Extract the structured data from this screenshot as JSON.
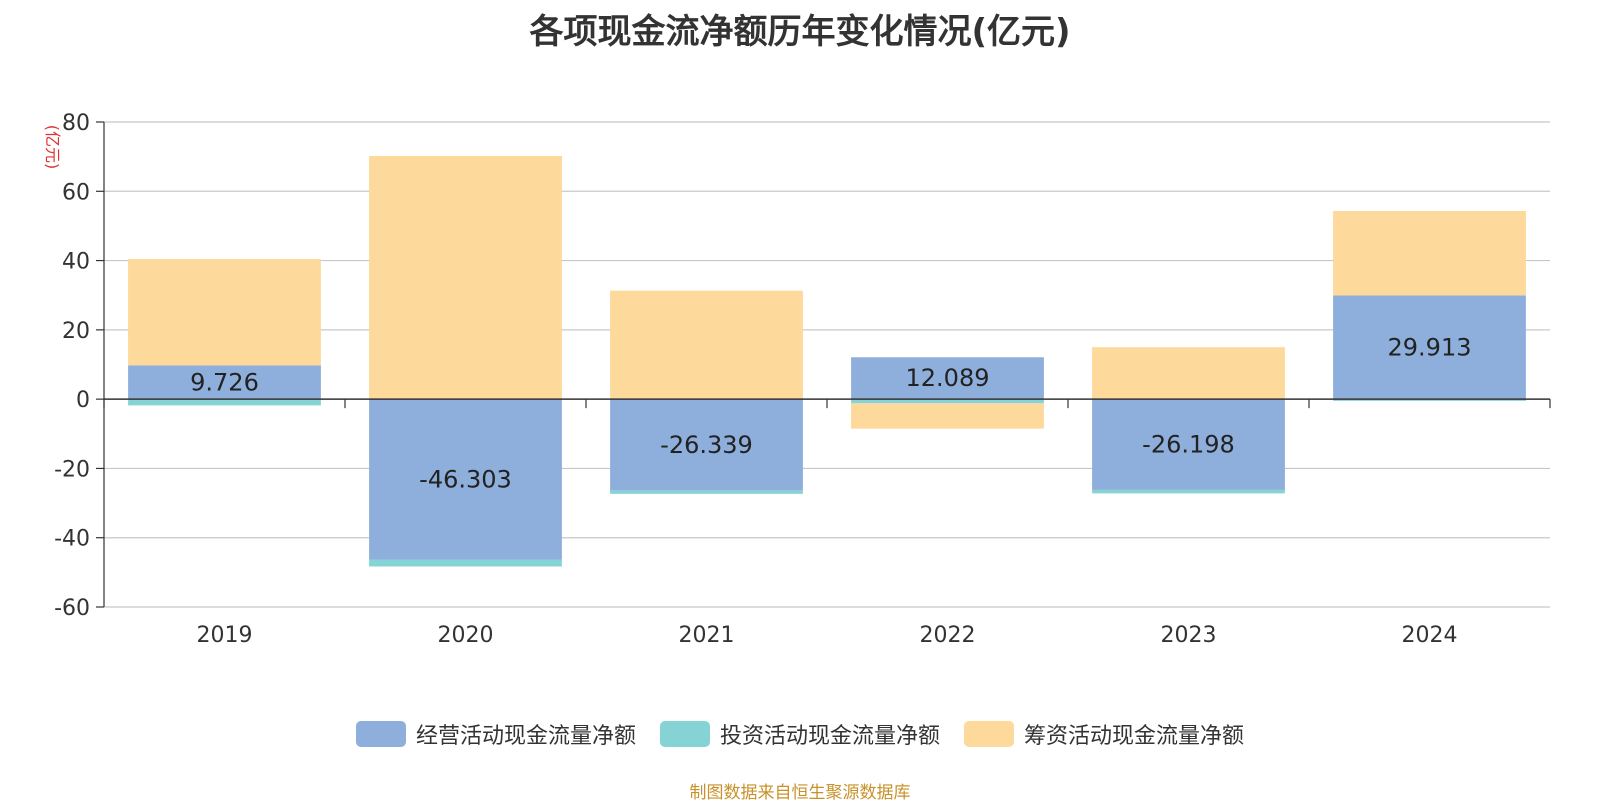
{
  "source_note": "制图数据来自恒生聚源数据库",
  "colors": {
    "operating": "#8eaedb",
    "investing": "#86d3d6",
    "financing": "#fdd99b",
    "source": "#c8922a",
    "ylabel": "#e03030"
  },
  "chart_data": {
    "type": "bar",
    "stacked": true,
    "title": "各项现金流净额历年变化情况(亿元)",
    "ylabel": "(亿元)",
    "xlabel": "",
    "categories": [
      "2019",
      "2020",
      "2021",
      "2022",
      "2023",
      "2024"
    ],
    "ylim": [
      -60,
      80
    ],
    "yticks": [
      -60,
      -40,
      -20,
      0,
      20,
      40,
      60,
      80
    ],
    "grid": true,
    "legend_position": "bottom",
    "series": [
      {
        "name": "经营活动现金流量净额",
        "key": "operating",
        "values": [
          9.726,
          -46.303,
          -26.339,
          12.089,
          -26.198,
          29.913
        ],
        "labels": [
          "9.726",
          "-46.303",
          "-26.339",
          "12.089",
          "-26.198",
          "29.913"
        ]
      },
      {
        "name": "投资活动现金流量净额",
        "key": "investing",
        "values": [
          -1.8,
          -2.0,
          -1.0,
          -1.2,
          -1.0,
          -0.5
        ]
      },
      {
        "name": "筹资活动现金流量净额",
        "key": "financing",
        "values": [
          30.7,
          70.2,
          31.3,
          -7.3,
          15.0,
          24.4
        ]
      }
    ]
  }
}
